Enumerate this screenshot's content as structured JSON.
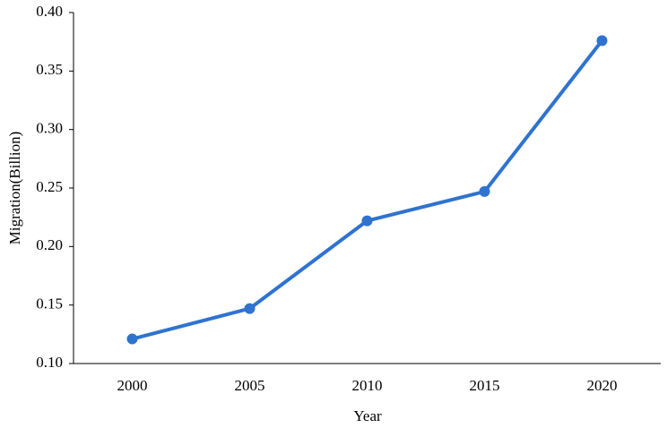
{
  "chart_data": {
    "type": "line",
    "categories": [
      "2000",
      "2005",
      "2010",
      "2015",
      "2020"
    ],
    "series": [
      {
        "name": "Migration",
        "color": "#2f73cf",
        "values": [
          0.121,
          0.147,
          0.222,
          0.247,
          0.376
        ]
      }
    ],
    "x_label": "Year",
    "y_label": "Migration(Billion)",
    "ylim": [
      0.1,
      0.4
    ],
    "yticks": [
      {
        "value": 0.1,
        "label": "0.10"
      },
      0.15,
      {
        "value": 0.2,
        "label": "0.20"
      },
      0.25,
      {
        "value": 0.3,
        "label": "0.30"
      },
      0.35,
      {
        "value": 0.4,
        "label": "0.40"
      }
    ],
    "grid": false
  }
}
